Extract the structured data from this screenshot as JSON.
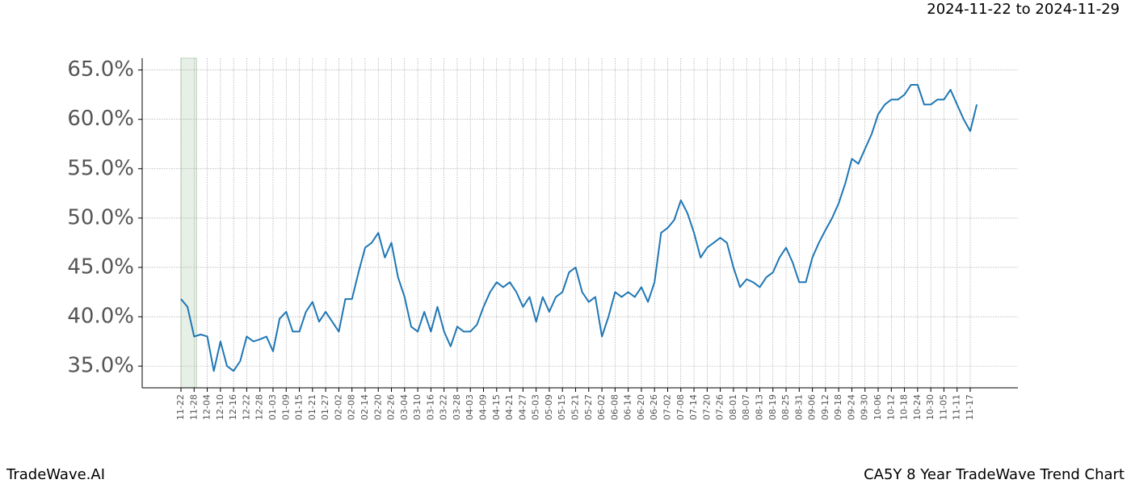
{
  "chart_data": {
    "type": "line",
    "date_range": "2024-11-22 to 2024-11-29",
    "brand": "TradeWave.AI",
    "title": "CA5Y 8 Year TradeWave Trend Chart",
    "categories": [
      "11-22",
      null,
      "11-28",
      null,
      "12-04",
      null,
      "12-10",
      null,
      "12-16",
      null,
      "12-22",
      null,
      "12-28",
      null,
      "01-03",
      null,
      "01-09",
      null,
      "01-15",
      null,
      "01-21",
      null,
      "01-27",
      null,
      "02-02",
      null,
      "02-08",
      null,
      "02-14",
      null,
      "02-20",
      null,
      "02-26",
      null,
      "03-04",
      null,
      "03-10",
      null,
      "03-16",
      null,
      "03-22",
      null,
      "03-28",
      null,
      "04-03",
      null,
      "04-09",
      null,
      "04-15",
      null,
      "04-21",
      null,
      "04-27",
      null,
      "05-03",
      null,
      "05-09",
      null,
      "05-15",
      null,
      "05-21",
      null,
      "05-27",
      null,
      "06-02",
      null,
      "06-08",
      null,
      "06-14",
      null,
      "06-20",
      null,
      "06-26",
      null,
      "07-02",
      null,
      "07-08",
      null,
      "07-14",
      null,
      "07-20",
      null,
      "07-26",
      null,
      "08-01",
      null,
      "08-07",
      null,
      "08-13",
      null,
      "08-19",
      null,
      "08-25",
      null,
      "08-31",
      null,
      "09-06",
      null,
      "09-12",
      null,
      "09-18",
      null,
      "09-24",
      null,
      "09-30",
      null,
      "10-06",
      null,
      "10-12",
      null,
      "10-18",
      null,
      "10-24",
      null,
      "10-30",
      null,
      "11-05",
      null,
      "11-11",
      null,
      "11-17",
      null
    ],
    "series": [
      {
        "color": "#1f77b4",
        "values": [
          41.8,
          41.0,
          38.0,
          38.2,
          38.0,
          34.5,
          37.5,
          35.0,
          34.5,
          35.5,
          38.0,
          37.5,
          37.7,
          38.0,
          36.5,
          39.8,
          40.5,
          38.5,
          38.5,
          40.5,
          41.5,
          39.5,
          40.5,
          39.5,
          38.5,
          41.8,
          41.8,
          44.5,
          47.0,
          47.5,
          48.5,
          46.0,
          47.5,
          44.0,
          42.0,
          39.0,
          38.5,
          40.5,
          38.5,
          41.0,
          38.5,
          37.0,
          39.0,
          38.5,
          38.5,
          39.2,
          41.0,
          42.5,
          43.5,
          43.0,
          43.5,
          42.5,
          41.0,
          42.0,
          39.5,
          42.0,
          40.5,
          42.0,
          42.5,
          44.5,
          45.0,
          42.5,
          41.5,
          42.0,
          38.0,
          40.0,
          42.5,
          42.0,
          42.5,
          42.0,
          43.0,
          41.5,
          43.5,
          48.5,
          49.0,
          49.8,
          51.8,
          50.5,
          48.5,
          46.0,
          47.0,
          47.5,
          48.0,
          47.5,
          45.0,
          43.0,
          43.8,
          43.5,
          43.0,
          44.0,
          44.5,
          46.0,
          47.0,
          45.5,
          43.5,
          43.5,
          46.0,
          47.5,
          48.8,
          50.0,
          51.5,
          53.5,
          56.0,
          55.5,
          57.0,
          58.5,
          60.5,
          61.5,
          62.0,
          62.0,
          62.5,
          63.5,
          63.5,
          61.5,
          61.5,
          62.0,
          62.0,
          63.0,
          61.5,
          60.0,
          58.8,
          61.5
        ]
      }
    ],
    "highlight": [
      0,
      2
    ],
    "highlight_color": "#e6f0e6",
    "ylim": [
      32.8,
      66.2
    ],
    "yticks": [
      {
        "value": 35,
        "label": "35.0%"
      },
      {
        "value": 40,
        "label": "40.0%"
      },
      {
        "value": 45,
        "label": "45.0%"
      },
      {
        "value": 50,
        "label": "50.0%"
      },
      {
        "value": 55,
        "label": "55.0%"
      },
      {
        "value": 60,
        "label": "60.0%"
      },
      {
        "value": 65,
        "label": "65.0%"
      }
    ],
    "grid": true
  }
}
